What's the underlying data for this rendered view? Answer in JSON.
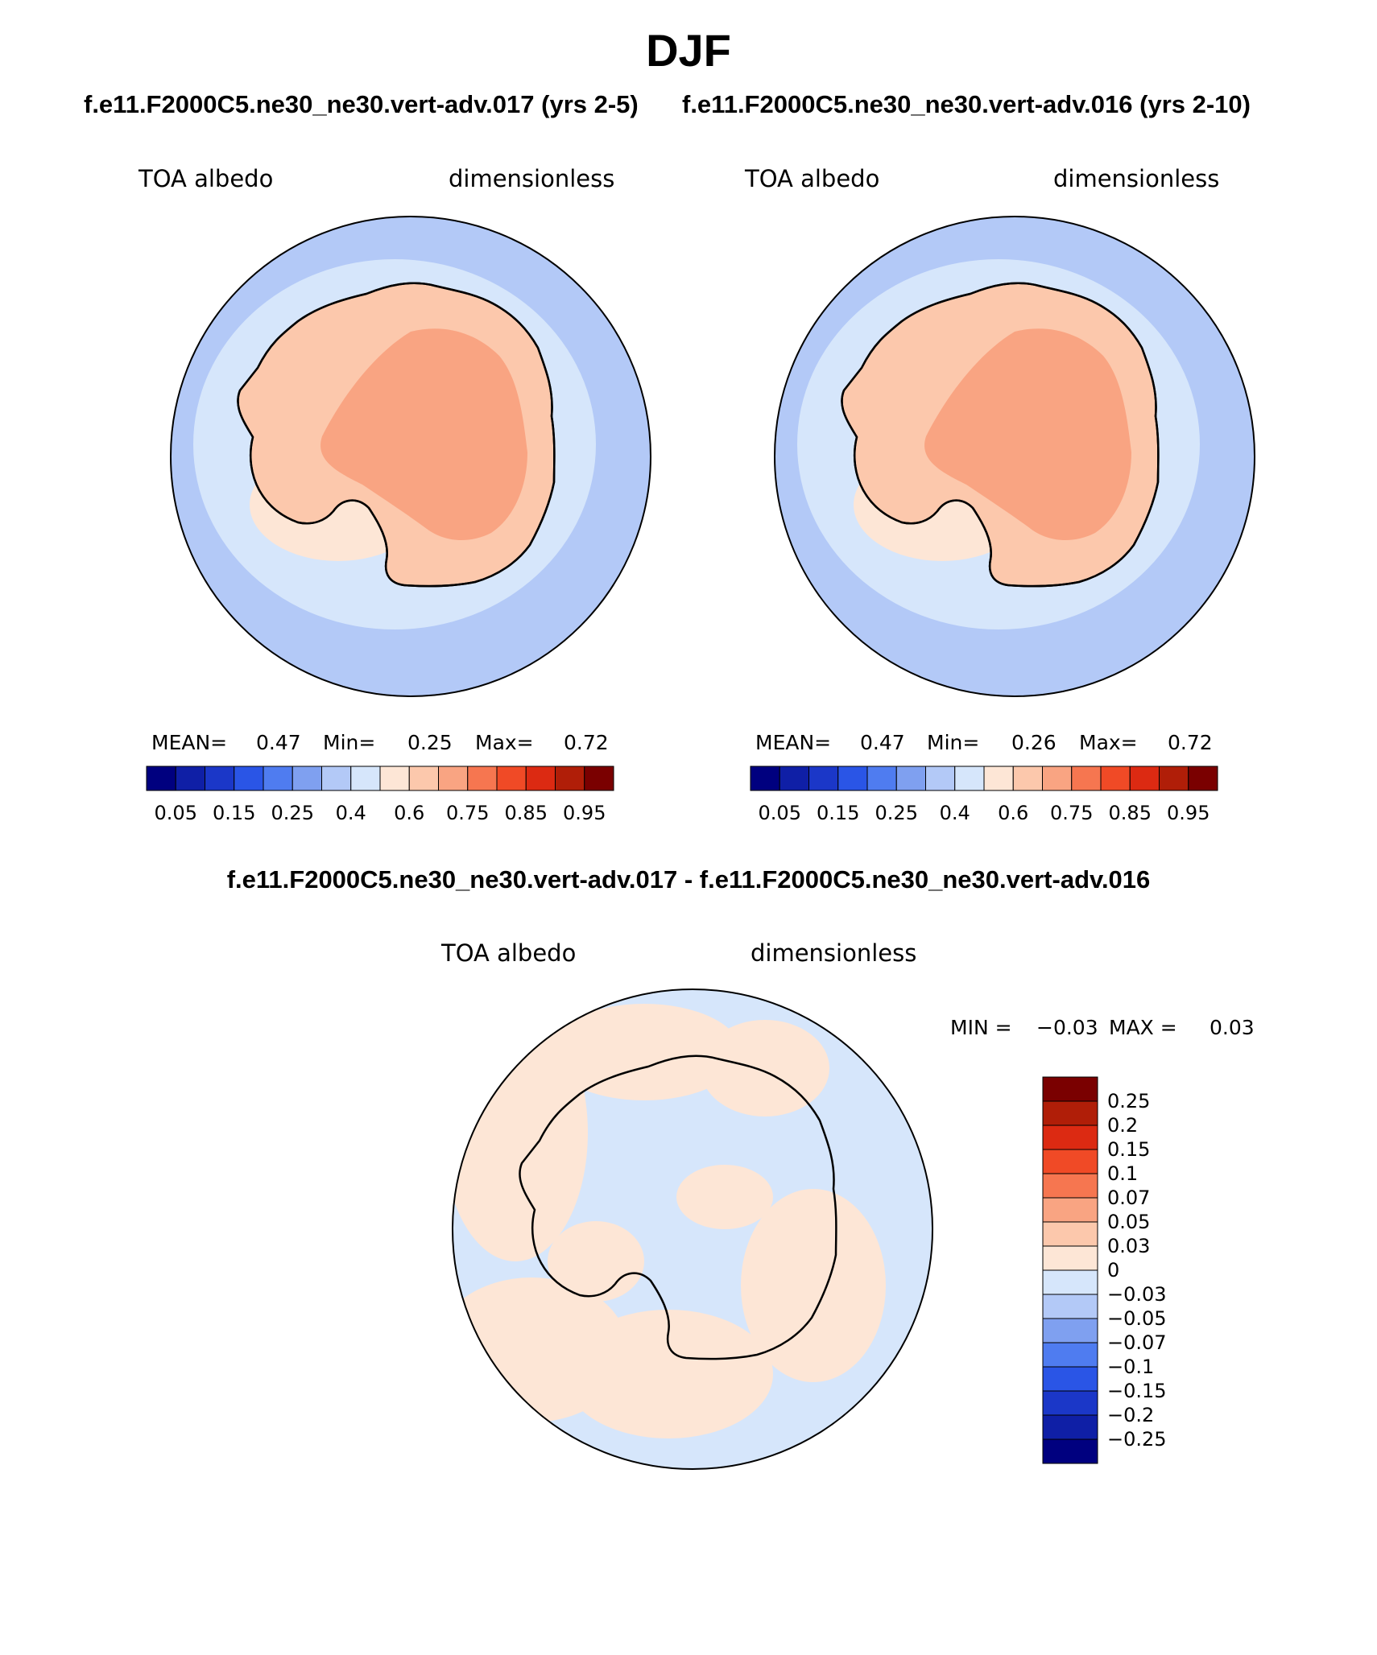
{
  "figure": {
    "title": "DJF",
    "left_case": "f.e11.F2000C5.ne30_ne30.vert-adv.017 (yrs 2-5)",
    "right_case": "f.e11.F2000C5.ne30_ne30.vert-adv.016 (yrs 2-10)",
    "diff_title": "f.e11.F2000C5.ne30_ne30.vert-adv.017 - f.e11.F2000C5.ne30_ne30.vert-adv.016"
  },
  "panels": [
    {
      "field": "TOA albedo",
      "units": "dimensionless",
      "mean_label": "MEAN=",
      "mean": "0.47",
      "min_label": "Min=",
      "min": "0.25",
      "max_label": "Max=",
      "max": "0.72"
    },
    {
      "field": "TOA albedo",
      "units": "dimensionless",
      "mean_label": "MEAN=",
      "mean": "0.47",
      "min_label": "Min=",
      "min": "0.26",
      "max_label": "Max=",
      "max": "0.72"
    }
  ],
  "diff_panel": {
    "field": "TOA albedo",
    "units": "dimensionless",
    "min_label": "MIN =",
    "min": "−0.03",
    "max_label": "MAX =",
    "max": "0.03"
  },
  "chart_data": [
    {
      "type": "heatmap",
      "projection": "south-polar stereographic",
      "colorbar_orientation": "horizontal",
      "colorbar_ticks": [
        "0.05",
        "0.15",
        "0.25",
        "0.4",
        "0.6",
        "0.75",
        "0.85",
        "0.95"
      ],
      "colorbar_colors": [
        "#00007f",
        "#0f1fa6",
        "#1b37c8",
        "#2a55e6",
        "#4f7cf0",
        "#7fa0f0",
        "#b3c9f7",
        "#d6e6fb",
        "#fde6d6",
        "#fcc8ac",
        "#f9a482",
        "#f67650",
        "#f04a26",
        "#dc2a12",
        "#b01e08",
        "#7a0000"
      ]
    },
    {
      "type": "heatmap",
      "projection": "south-polar stereographic",
      "colorbar_orientation": "horizontal",
      "colorbar_ticks": [
        "0.05",
        "0.15",
        "0.25",
        "0.4",
        "0.6",
        "0.75",
        "0.85",
        "0.95"
      ],
      "colorbar_colors": [
        "#00007f",
        "#0f1fa6",
        "#1b37c8",
        "#2a55e6",
        "#4f7cf0",
        "#7fa0f0",
        "#b3c9f7",
        "#d6e6fb",
        "#fde6d6",
        "#fcc8ac",
        "#f9a482",
        "#f67650",
        "#f04a26",
        "#dc2a12",
        "#b01e08",
        "#7a0000"
      ]
    },
    {
      "type": "heatmap",
      "projection": "south-polar stereographic",
      "colorbar_orientation": "vertical",
      "colorbar_ticks": [
        "0.25",
        "0.2",
        "0.15",
        "0.1",
        "0.07",
        "0.05",
        "0.03",
        "0",
        "−0.03",
        "−0.05",
        "−0.07",
        "−0.1",
        "−0.15",
        "−0.2",
        "−0.25"
      ],
      "colorbar_colors": [
        "#7a0000",
        "#b01e08",
        "#dc2a12",
        "#f04a26",
        "#f67650",
        "#f9a482",
        "#fcc8ac",
        "#fde6d6",
        "#d6e6fb",
        "#b3c9f7",
        "#7fa0f0",
        "#4f7cf0",
        "#2a55e6",
        "#1b37c8",
        "#0f1fa6",
        "#00007f"
      ]
    }
  ],
  "colors": {
    "ocean_left": "#b3c9f7",
    "ice_light": "#d6e6fb",
    "land": "#fcc8ac",
    "plateau": "#f9a482",
    "pale": "#fde6d6",
    "diff_neg": "#d6e6fb",
    "diff_pos": "#fde6d6"
  }
}
